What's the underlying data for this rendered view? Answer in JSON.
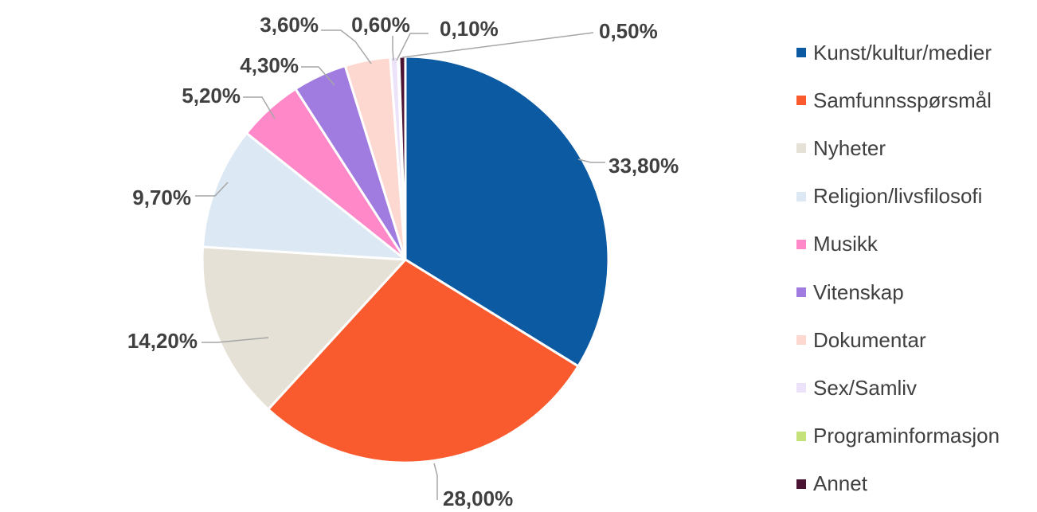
{
  "chart_data": {
    "type": "pie",
    "title": "",
    "legend_position": "right",
    "slices": [
      {
        "name": "Kunst/kultur/medier",
        "value": 33.8,
        "label": "33,80%",
        "color": "#0B5AA2"
      },
      {
        "name": "Samfunnsspørsmål",
        "value": 28.0,
        "label": "28,00%",
        "color": "#F95B2E"
      },
      {
        "name": "Nyheter",
        "value": 14.2,
        "label": "14,20%",
        "color": "#E6E1D6"
      },
      {
        "name": "Religion/livsfilosofi",
        "value": 9.7,
        "label": "9,70%",
        "color": "#DCE8F4"
      },
      {
        "name": "Musikk",
        "value": 5.2,
        "label": "5,20%",
        "color": "#FF88C8"
      },
      {
        "name": "Vitenskap",
        "value": 4.3,
        "label": "4,30%",
        "color": "#A07BE0"
      },
      {
        "name": "Dokumentar",
        "value": 3.6,
        "label": "3,60%",
        "color": "#FDD8D0"
      },
      {
        "name": "Sex/Samliv",
        "value": 0.6,
        "label": "0,60%",
        "color": "#ECE3FA"
      },
      {
        "name": "Programinformasjon",
        "value": 0.1,
        "label": "0,10%",
        "color": "#C5E27A"
      },
      {
        "name": "Annet",
        "value": 0.5,
        "label": "0,50%",
        "color": "#4A1432"
      }
    ]
  }
}
